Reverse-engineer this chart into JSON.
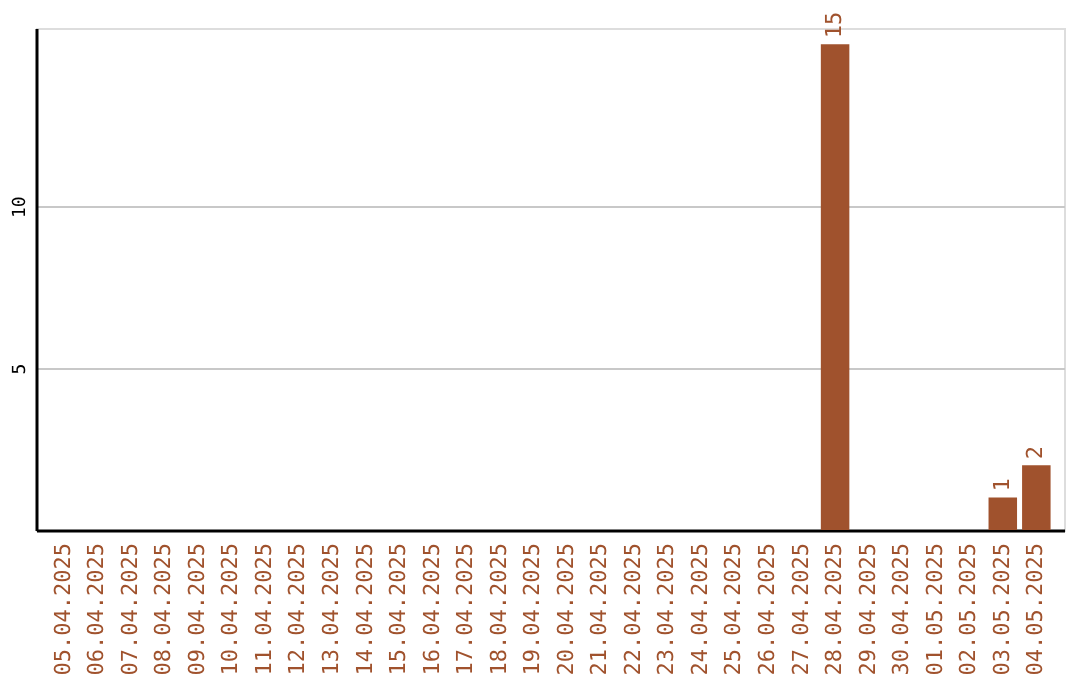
{
  "chart_data": {
    "type": "bar",
    "categories": [
      "05.04.2025",
      "06.04.2025",
      "07.04.2025",
      "08.04.2025",
      "09.04.2025",
      "10.04.2025",
      "11.04.2025",
      "12.04.2025",
      "13.04.2025",
      "14.04.2025",
      "15.04.2025",
      "16.04.2025",
      "17.04.2025",
      "18.04.2025",
      "19.04.2025",
      "20.04.2025",
      "21.04.2025",
      "22.04.2025",
      "23.04.2025",
      "24.04.2025",
      "25.04.2025",
      "26.04.2025",
      "27.04.2025",
      "28.04.2025",
      "29.04.2025",
      "30.04.2025",
      "01.05.2025",
      "02.05.2025",
      "03.05.2025",
      "04.05.2025"
    ],
    "values": [
      0,
      0,
      0,
      0,
      0,
      0,
      0,
      0,
      0,
      0,
      0,
      0,
      0,
      0,
      0,
      0,
      0,
      0,
      0,
      0,
      0,
      0,
      0,
      15,
      0,
      0,
      0,
      0,
      1,
      2
    ],
    "value_labels": [
      null,
      null,
      null,
      null,
      null,
      null,
      null,
      null,
      null,
      null,
      null,
      null,
      null,
      null,
      null,
      null,
      null,
      null,
      null,
      null,
      null,
      null,
      null,
      "15",
      null,
      null,
      null,
      null,
      "1",
      "2"
    ],
    "color": "#a0522d",
    "ylim": [
      0,
      15.5
    ],
    "yticks": [
      5,
      10
    ],
    "grid": "y"
  }
}
